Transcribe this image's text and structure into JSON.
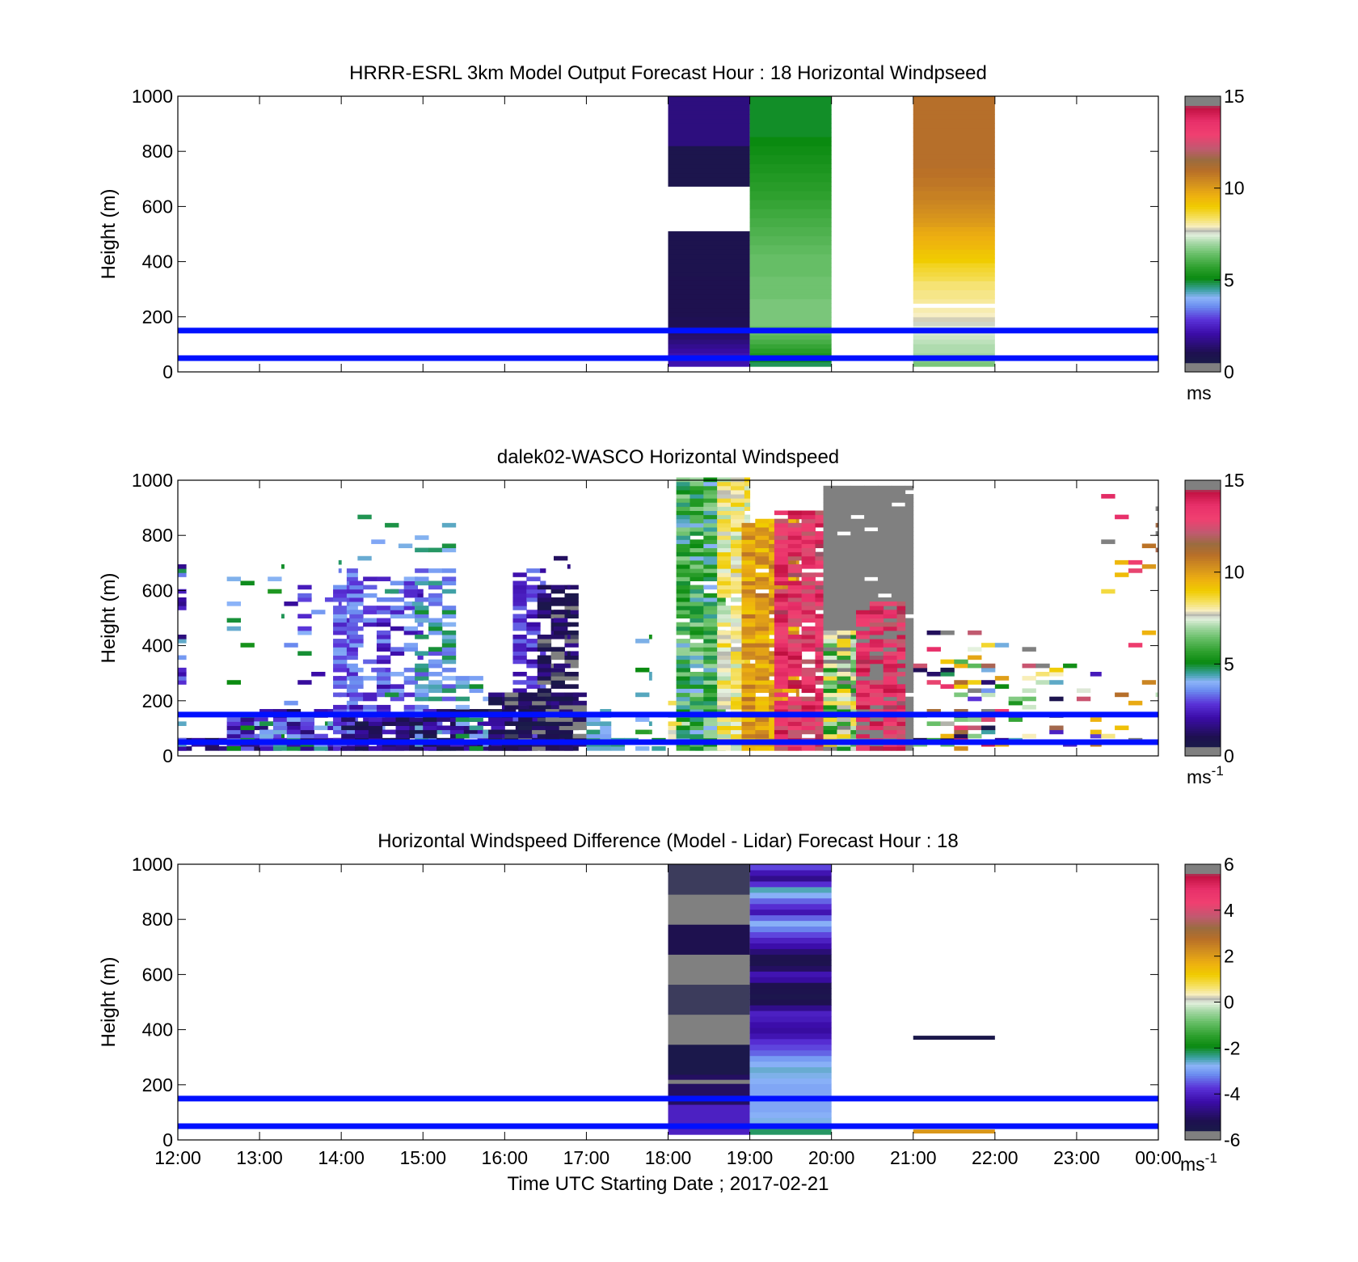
{
  "chart_data": [
    {
      "type": "heatmap",
      "title": "HRRR-ESRL 3km Model Output   Forecast Hour : 18 Horizontal Windpseed",
      "xlabel": "",
      "ylabel": "Height (m)",
      "x_ticks": [
        "12:00",
        "13:00",
        "14:00",
        "15:00",
        "16:00",
        "17:00",
        "18:00",
        "19:00",
        "20:00",
        "21:00",
        "22:00",
        "23:00",
        "00:00"
      ],
      "y_ticks": [
        "0",
        "200",
        "400",
        "600",
        "800",
        "1000"
      ],
      "ylim": [
        0,
        1000
      ],
      "xlim_hours": [
        12,
        24
      ],
      "colorbar": {
        "ticks": [
          "0",
          "5",
          "10",
          "15"
        ],
        "min": 0,
        "max": 15,
        "unit": "ms",
        "unit_sup": ""
      },
      "reference_lines_m": [
        50,
        150
      ],
      "columns": [
        {
          "start_hour": 18,
          "end_hour": 19,
          "base": 20,
          "values": [
            2.2,
            2.2,
            2.2,
            2.0,
            1.8,
            1.6,
            1.4,
            1.3,
            1.2,
            1.1,
            1.1,
            1.0,
            1.0,
            1.0,
            1.0,
            1.0,
            1.0,
            1.0,
            1.0,
            1.0,
            0.9,
            0.9,
            0.9,
            0.9,
            0.9,
            0.9,
            0.9,
            0.9,
            0.9,
            0.9,
            "NaN",
            "NaN",
            "NaN",
            "NaN",
            "NaN",
            "NaN",
            "NaN",
            "NaN",
            "NaN",
            "NaN",
            0.8,
            0.8,
            0.8,
            0.8,
            0.8,
            0.8,
            0.8,
            0.8,
            0.8,
            1.6,
            1.6,
            1.6,
            1.6,
            1.6,
            1.6,
            1.6,
            1.6,
            1.6,
            1.6,
            1.6
          ]
        },
        {
          "start_hour": 19,
          "end_hour": 20,
          "base": 20,
          "values": [
            4.8,
            5.2,
            5.4,
            5.6,
            5.8,
            6.0,
            6.2,
            6.4,
            6.4,
            6.6,
            6.6,
            6.6,
            6.6,
            6.6,
            6.6,
            6.5,
            6.5,
            6.5,
            6.5,
            6.5,
            6.4,
            6.4,
            6.4,
            6.4,
            6.4,
            6.3,
            6.3,
            6.2,
            6.2,
            6.1,
            6.1,
            6.0,
            6.0,
            5.9,
            5.9,
            5.8,
            5.8,
            5.7,
            5.7,
            5.6,
            5.6,
            5.5,
            5.5,
            5.4,
            5.4,
            5.3,
            5.3,
            5.2,
            5.2,
            5.1,
            5.1,
            5.0,
            5.0,
            5.0,
            5.0,
            5.0,
            5.0,
            5.0,
            5.0,
            5.0
          ]
        },
        {
          "start_hour": 21,
          "end_hour": 22,
          "base": 20,
          "values": [
            6.6,
            6.8,
            7.0,
            7.1,
            7.1,
            7.2,
            7.3,
            7.4,
            7.5,
            7.6,
            7.8,
            7.9,
            8.0,
            "NaN",
            8.1,
            8.2,
            8.2,
            8.3,
            8.3,
            8.5,
            8.6,
            8.7,
            8.8,
            9.0,
            9.1,
            9.2,
            9.4,
            9.5,
            9.6,
            9.7,
            9.8,
            10.0,
            10.1,
            10.2,
            10.3,
            10.4,
            10.5,
            10.6,
            10.6,
            10.7,
            10.8,
            10.8,
            10.9,
            10.9,
            11.0,
            11.0,
            11.0,
            11.0,
            11.0,
            11.0,
            11.0,
            11.0,
            11.0,
            11.0,
            11.0,
            11.0,
            11.0,
            11.0,
            11.0,
            11.0
          ]
        }
      ],
      "sparse": []
    },
    {
      "type": "heatmap",
      "title": "dalek02-WASCO  Horizontal Windspeed",
      "xlabel": "",
      "ylabel": "Height (m)",
      "x_ticks": [
        "12:00",
        "13:00",
        "14:00",
        "15:00",
        "16:00",
        "17:00",
        "18:00",
        "19:00",
        "20:00",
        "21:00",
        "22:00",
        "23:00",
        "00:00"
      ],
      "y_ticks": [
        "0",
        "200",
        "400",
        "600",
        "800",
        "1000"
      ],
      "ylim": [
        0,
        1000
      ],
      "xlim_hours": [
        12,
        24
      ],
      "colorbar": {
        "ticks": [
          "0",
          "5",
          "10",
          "15"
        ],
        "min": 0,
        "max": 15,
        "unit": "ms",
        "unit_sup": "-1"
      },
      "reference_lines_m": [
        50,
        150
      ],
      "columns": [],
      "sparse": [
        {
          "t0": 12.0,
          "t1": 12.6,
          "top": 60,
          "lo": 1.0,
          "hi": 2.2,
          "density": 0.85,
          "seed": 1
        },
        {
          "t0": 12.0,
          "t1": 12.1,
          "top": 730,
          "lo": 1.5,
          "hi": 5.5,
          "density": 0.4,
          "seed": 2
        },
        {
          "t0": 12.6,
          "t1": 13.3,
          "top": 130,
          "lo": 1.0,
          "hi": 3.5,
          "density": 0.8,
          "seed": 3
        },
        {
          "t0": 12.6,
          "t1": 13.3,
          "top": 730,
          "lo": 4.0,
          "hi": 5.5,
          "density": 0.1,
          "seed": 4
        },
        {
          "t0": 13.3,
          "t1": 14.0,
          "top": 720,
          "lo": 1.5,
          "hi": 5.0,
          "density": 0.18,
          "seed": 5
        },
        {
          "t0": 13.0,
          "t1": 14.0,
          "top": 160,
          "lo": 1.0,
          "hi": 5.0,
          "density": 0.75,
          "seed": 6
        },
        {
          "t0": 13.9,
          "t1": 14.2,
          "top": 680,
          "lo": 2.5,
          "hi": 4.0,
          "density": 0.75,
          "seed": 7
        },
        {
          "t0": 14.1,
          "t1": 15.0,
          "top": 650,
          "lo": 2.0,
          "hi": 4.0,
          "density": 0.55,
          "seed": 8
        },
        {
          "t0": 14.2,
          "t1": 15.0,
          "top": 870,
          "lo": 3.0,
          "hi": 5.0,
          "density": 0.05,
          "seed": 9
        },
        {
          "t0": 14.0,
          "t1": 15.0,
          "top": 130,
          "lo": 0.5,
          "hi": 2.5,
          "density": 0.8,
          "seed": 10
        },
        {
          "t0": 14.9,
          "t1": 15.4,
          "top": 680,
          "lo": 3.0,
          "hi": 5.0,
          "density": 0.6,
          "seed": 11
        },
        {
          "t0": 14.9,
          "t1": 15.4,
          "top": 870,
          "lo": 4.0,
          "hi": 5.0,
          "density": 0.1,
          "seed": 12
        },
        {
          "t0": 15.0,
          "t1": 16.0,
          "top": 160,
          "lo": 0.5,
          "hi": 2.5,
          "density": 0.8,
          "seed": 13
        },
        {
          "t0": 15.4,
          "t1": 15.8,
          "top": 300,
          "lo": 3.5,
          "hi": 5.0,
          "density": 0.4,
          "seed": 14
        },
        {
          "t0": 15.8,
          "t1": 16.4,
          "top": 220,
          "lo": 0.5,
          "hi": 2.0,
          "density": 0.85,
          "seed": 15
        },
        {
          "t0": 16.1,
          "t1": 16.5,
          "top": 680,
          "lo": 2.0,
          "hi": 3.5,
          "density": 0.65,
          "seed": 16
        },
        {
          "t0": 16.4,
          "t1": 16.9,
          "top": 620,
          "lo": 0.2,
          "hi": 1.8,
          "density": 0.7,
          "seed": 17
        },
        {
          "t0": 16.6,
          "t1": 16.8,
          "top": 800,
          "lo": 0.5,
          "hi": 2.0,
          "density": 0.15,
          "seed": 18
        },
        {
          "t0": 16.0,
          "t1": 17.0,
          "top": 230,
          "lo": 0.2,
          "hi": 1.5,
          "density": 0.85,
          "seed": 19
        },
        {
          "t0": 17.0,
          "t1": 17.3,
          "top": 170,
          "lo": 3.8,
          "hi": 4.8,
          "density": 0.8,
          "seed": 20
        },
        {
          "t0": 17.3,
          "t1": 18.0,
          "top": 60,
          "lo": 4.0,
          "hi": 5.0,
          "density": 0.6,
          "seed": 21
        },
        {
          "t0": 17.6,
          "t1": 17.8,
          "top": 440,
          "lo": 4.0,
          "hi": 6.0,
          "density": 0.12,
          "seed": 22
        },
        {
          "t0": 18.0,
          "t1": 18.5,
          "top": 200,
          "lo": 6.5,
          "hi": 9.0,
          "density": 0.7,
          "seed": 23
        },
        {
          "t0": 18.1,
          "t1": 18.7,
          "top": 1000,
          "lo": 4.0,
          "hi": 7.0,
          "density": 0.95,
          "seed": 24
        },
        {
          "t0": 18.6,
          "t1": 19.0,
          "top": 1000,
          "lo": 7.0,
          "hi": 9.0,
          "density": 0.95,
          "seed": 25
        },
        {
          "t0": 18.9,
          "t1": 19.6,
          "top": 860,
          "lo": 9.0,
          "hi": 11.0,
          "density": 0.95,
          "seed": 26
        },
        {
          "t0": 19.3,
          "t1": 20.0,
          "top": 880,
          "lo": 12.0,
          "hi": 14.5,
          "density": 0.9,
          "seed": 27
        },
        {
          "t0": 19.9,
          "t1": 21.0,
          "top": 980,
          "lo": 15.2,
          "hi": 15.8,
          "density": 0.97,
          "seed": 28
        },
        {
          "t0": 19.9,
          "t1": 20.3,
          "top": 450,
          "lo": 5.0,
          "hi": 9.0,
          "density": 0.9,
          "seed": 29
        },
        {
          "t0": 20.3,
          "t1": 20.9,
          "top": 560,
          "lo": 12.0,
          "hi": 14.8,
          "density": 0.85,
          "seed": 30
        },
        {
          "t0": 21.0,
          "t1": 22.0,
          "top": 450,
          "lo": 0.5,
          "hi": 15.5,
          "density": 0.28,
          "seed": 31
        },
        {
          "t0": 22.0,
          "t1": 23.3,
          "top": 400,
          "lo": 0.5,
          "hi": 15.5,
          "density": 0.12,
          "seed": 32
        },
        {
          "t0": 23.3,
          "t1": 24.0,
          "top": 960,
          "lo": 7.0,
          "hi": 15.0,
          "density": 0.06,
          "seed": 33
        }
      ]
    },
    {
      "type": "heatmap",
      "title": "Horizontal Windspeed Difference (Model - Lidar) Forecast Hour : 18",
      "xlabel": "Time UTC  Starting Date ; 2017-02-21",
      "ylabel": "Height (m)",
      "x_ticks": [
        "12:00",
        "13:00",
        "14:00",
        "15:00",
        "16:00",
        "17:00",
        "18:00",
        "19:00",
        "20:00",
        "21:00",
        "22:00",
        "23:00",
        "00:00"
      ],
      "y_ticks": [
        "0",
        "200",
        "400",
        "600",
        "800",
        "1000"
      ],
      "ylim": [
        0,
        1000
      ],
      "xlim_hours": [
        12,
        24
      ],
      "colorbar": {
        "ticks": [
          "-6",
          "-4",
          "-2",
          "0",
          "2",
          "4",
          "6"
        ],
        "min": -6,
        "max": 6,
        "unit": "ms",
        "unit_sup": "-1"
      },
      "reference_lines_m": [
        50,
        150
      ],
      "columns": [
        {
          "start_hour": 18,
          "end_hour": 19,
          "base": 20,
          "values": [
            -4.0,
            -5.0,
            -5.5,
            -6.2,
            -5.6,
            -6.2,
            -5.2,
            -5.8,
            -5.6
          ]
        },
        {
          "start_hour": 19,
          "end_hour": 20,
          "base": 20,
          "values": [
            -2.2,
            -2.5,
            -2.7,
            -2.8,
            -2.9,
            -2.9,
            -2.8,
            -2.9,
            -2.9,
            -2.8,
            -2.7,
            -2.6,
            -2.8,
            -3.0,
            -3.4,
            -3.6,
            -3.8,
            -4.2,
            -4.4,
            -4.3,
            -4.1,
            -4.0,
            -4.6,
            -5.2,
            -5.4,
            -5.3,
            -5.2,
            -4.4,
            -4.2,
            -5.0,
            -5.3,
            -5.2,
            -4.8,
            -4.3,
            -4.0,
            -3.6,
            -3.2,
            -2.8,
            -3.4,
            -4.2,
            -3.8,
            -3.4,
            -2.8,
            -2.5,
            -3.8,
            -4.6,
            -4.2,
            -3.6
          ]
        }
      ],
      "sparse": [
        {
          "t0": 18.0,
          "t1": 19.0,
          "top": 215,
          "lo": 6.2,
          "hi": 6.5,
          "density": 1.0,
          "seed": 40,
          "single_row": 210
        },
        {
          "t0": 21.0,
          "t1": 22.0,
          "top": 375,
          "lo": -5.6,
          "hi": -5.4,
          "density": 1.0,
          "seed": 41,
          "single_row": 370
        },
        {
          "t0": 21.0,
          "t1": 22.0,
          "top": 35,
          "lo": 2.0,
          "hi": 2.2,
          "density": 1.0,
          "seed": 42,
          "single_row": 30
        }
      ]
    }
  ],
  "colormap_stops": [
    [
      "#808080",
      0.0
    ],
    [
      "#808080",
      0.03
    ],
    [
      "#1a1a4a",
      0.035
    ],
    [
      "#1e1050",
      0.07
    ],
    [
      "#3b0ca8",
      0.14
    ],
    [
      "#5a32d8",
      0.19
    ],
    [
      "#6c8ff0",
      0.24
    ],
    [
      "#8cb4f8",
      0.27
    ],
    [
      "#3aa0a0",
      0.3
    ],
    [
      "#0a8a10",
      0.34
    ],
    [
      "#2ea02e",
      0.38
    ],
    [
      "#6ac06a",
      0.43
    ],
    [
      "#a8d8a8",
      0.47
    ],
    [
      "#e6f2e0",
      0.5
    ],
    [
      "#b0b0a8",
      0.515
    ],
    [
      "#f8f0c8",
      0.525
    ],
    [
      "#f5e060",
      0.56
    ],
    [
      "#f0cc00",
      0.6
    ],
    [
      "#eeb010",
      0.64
    ],
    [
      "#d08c20",
      0.69
    ],
    [
      "#b86f28",
      0.73
    ],
    [
      "#9a6c40",
      0.77
    ],
    [
      "#c05a70",
      0.81
    ],
    [
      "#f04070",
      0.86
    ],
    [
      "#e8306a",
      0.91
    ],
    [
      "#c01040",
      0.96
    ],
    [
      "#808080",
      0.97
    ],
    [
      "#808080",
      1.0
    ]
  ]
}
